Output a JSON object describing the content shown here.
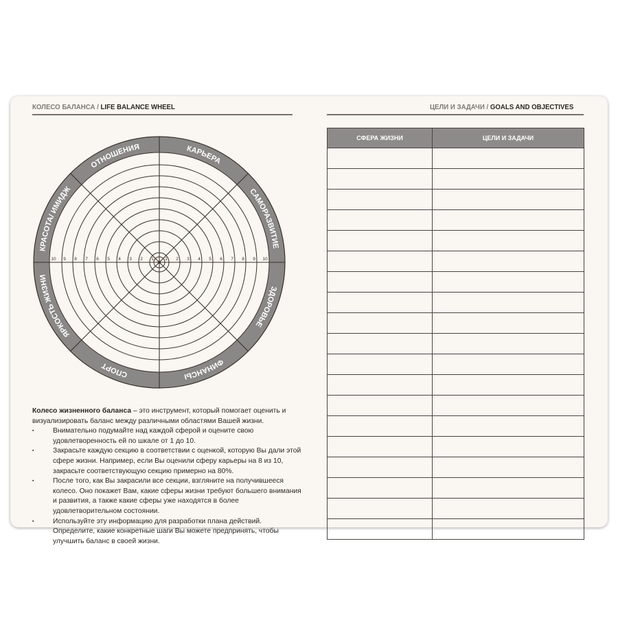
{
  "left_page": {
    "header_ru": "КОЛЕСО БАЛАНСА /",
    "header_en": "LIFE BALANCE WHEEL",
    "wheel": {
      "sectors": [
        "КАРЬЕРА",
        "САМОРАЗВИТИЕ",
        "ЗДОРОВЬЕ",
        "ФИНАНСЫ",
        "СПОРТ",
        "ЯРКОСТЬ ЖИЗНИ",
        "КРАСОТА/ ИМИДЖ",
        "ОТНОШЕНИЯ"
      ],
      "scale": [
        "1",
        "2",
        "3",
        "4",
        "5",
        "6",
        "7",
        "8",
        "9",
        "10"
      ],
      "ring_color": "#8a8886",
      "line_color": "#3a302a"
    },
    "intro_bold": "Колесо жизненного баланса",
    "intro_rest": " – это инструмент, который помогает оценить и визуализировать баланс между различными областями Вашей жизни.",
    "bullets": [
      "Внимательно подумайте над каждой сферой и оцените свою удовлетворенность ей по шкале от 1 до 10.",
      "Закрасьте каждую секцию в соответствии с оценкой, которую Вы дали этой сфере жизни. Например, если Вы оценили сферу карьеры на 8 из 10, закрасьте соответствующую секцию примерно на 80%.",
      "После того, как Вы закрасили все секции, взгляните на получившееся колесо. Оно покажет Вам, какие сферы жизни требуют большего внимания и развития, а также какие сферы уже находятся в более удовлетворительном состоянии.",
      "Используйте эту информацию для разработки плана действий. Определите, какие конкретные шаги Вы можете предпринять, чтобы улучшить баланс в своей жизни."
    ]
  },
  "right_page": {
    "header_ru": "ЦЕЛИ И ЗАДАЧИ /",
    "header_en": "GOALS AND OBJECTIVES",
    "table": {
      "columns": [
        "СФЕРА ЖИЗНИ",
        "ЦЕЛИ И ЗАДАЧИ"
      ],
      "empty_rows": 19
    }
  }
}
